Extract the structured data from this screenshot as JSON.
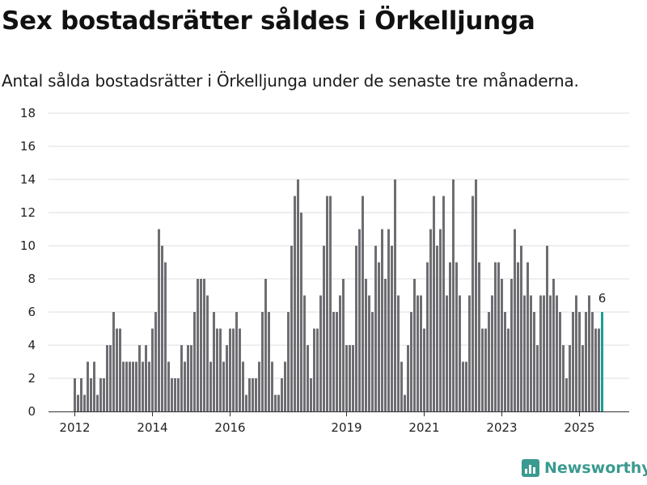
{
  "title": "Sex bostadsrätter såldes i Örkelljunga",
  "subtitle": "Antal sålda bostadsrätter i Örkelljunga under de senaste tre månaderna.",
  "brand": "Newsworthy",
  "colors": {
    "bar": "#6e6d72",
    "highlight": "#1a9e95",
    "grid": "#dddddd",
    "brand": "#3a9a8f"
  },
  "chart_data": {
    "type": "bar",
    "title": "",
    "xlabel": "",
    "ylabel": "",
    "ylim": [
      0,
      18
    ],
    "yticks": [
      0,
      2,
      4,
      6,
      8,
      10,
      12,
      14,
      16,
      18
    ],
    "xtick_labels": [
      "2012",
      "2014",
      "2016",
      "2019",
      "2021",
      "2023",
      "2025"
    ],
    "start": "2012-01",
    "frequency": "monthly",
    "grid": true,
    "highlight_label": "6",
    "values": [
      2,
      1,
      2,
      1,
      3,
      2,
      3,
      1,
      2,
      2,
      4,
      4,
      6,
      5,
      5,
      3,
      3,
      3,
      3,
      3,
      4,
      3,
      4,
      3,
      5,
      6,
      11,
      10,
      9,
      3,
      2,
      2,
      2,
      4,
      3,
      4,
      4,
      6,
      8,
      8,
      8,
      7,
      3,
      6,
      5,
      5,
      3,
      4,
      5,
      5,
      6,
      5,
      3,
      1,
      2,
      2,
      2,
      3,
      6,
      8,
      6,
      3,
      1,
      1,
      2,
      3,
      6,
      10,
      13,
      14,
      12,
      7,
      4,
      2,
      5,
      5,
      7,
      10,
      13,
      13,
      6,
      6,
      7,
      8,
      4,
      4,
      4,
      10,
      11,
      13,
      8,
      7,
      6,
      10,
      9,
      11,
      8,
      11,
      10,
      14,
      7,
      3,
      1,
      4,
      6,
      8,
      7,
      7,
      5,
      9,
      11,
      13,
      10,
      11,
      13,
      7,
      9,
      14,
      9,
      7,
      3,
      3,
      7,
      13,
      14,
      9,
      5,
      5,
      6,
      7,
      9,
      9,
      8,
      6,
      5,
      8,
      11,
      9,
      10,
      7,
      9,
      7,
      6,
      4,
      7,
      7,
      10,
      7,
      8,
      7,
      6,
      4,
      2,
      4,
      6,
      7,
      6,
      4,
      6,
      7,
      6,
      5,
      5,
      6
    ]
  }
}
